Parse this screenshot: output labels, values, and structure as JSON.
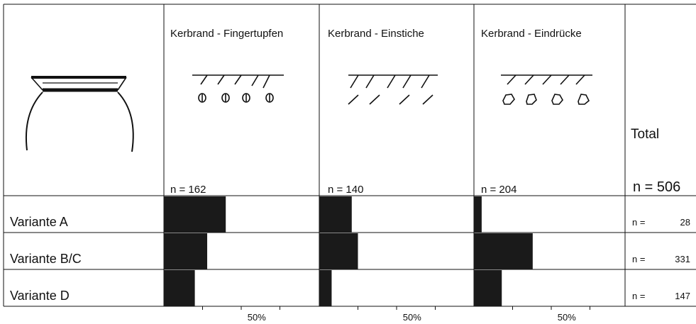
{
  "chart_data": {
    "type": "bar",
    "orientation": "horizontal",
    "variants": [
      "Variante A",
      "Variante B/C",
      "Variante D"
    ],
    "series": [
      {
        "name": "Kerbrand - Fingertupfen",
        "n_label": "n = 162",
        "values": [
          0.4,
          0.28,
          0.2
        ]
      },
      {
        "name": "Kerbrand - Einstiche",
        "n_label": "n = 140",
        "values": [
          0.21,
          0.25,
          0.08
        ]
      },
      {
        "name": "Kerbrand - Eindrücke",
        "n_label": "n = 204",
        "values": [
          0.05,
          0.38,
          0.18
        ]
      }
    ],
    "total": {
      "label": "Total",
      "n_label": "n = 506"
    },
    "row_totals": [
      {
        "prefix": "n =",
        "value": "28"
      },
      {
        "prefix": "n =",
        "value": "331"
      },
      {
        "prefix": "n =",
        "value": "147"
      }
    ],
    "axis": {
      "tick_label": "50%",
      "range": [
        0,
        1
      ],
      "ticks": [
        0.25,
        0.5,
        0.75
      ]
    },
    "bar_color": "#1a1a1a",
    "grid": false
  }
}
